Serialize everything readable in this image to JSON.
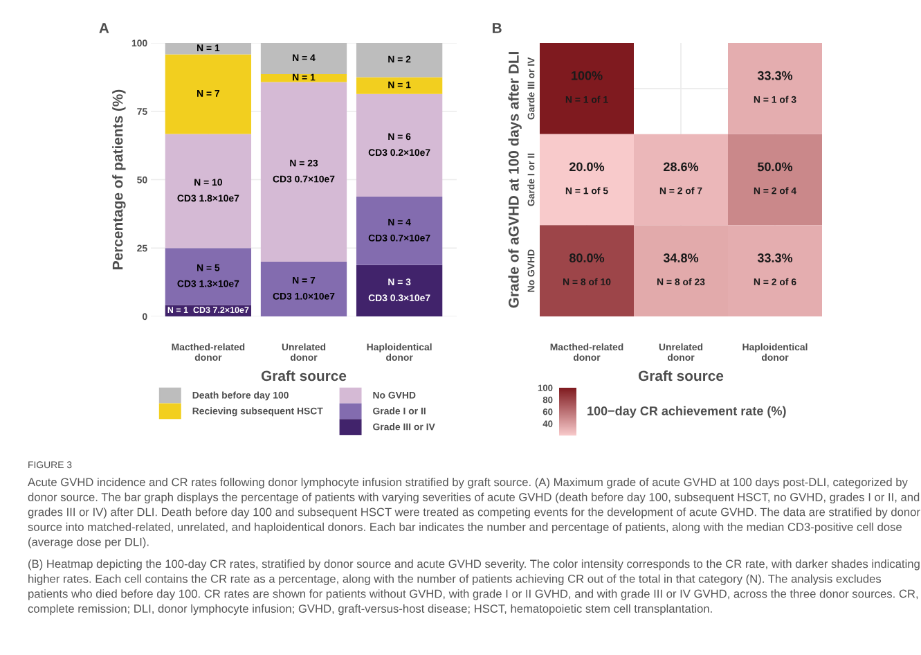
{
  "chart_data": [
    {
      "type": "bar",
      "title": "A",
      "stacked": true,
      "xlabel": "Graft source",
      "ylabel": "Percentage of patients (%)",
      "categories": [
        "Macthed-related\ndonor",
        "Unrelated\ndonor",
        "Haploidentical\ndonor"
      ],
      "ylim": [
        0,
        100
      ],
      "yticks": [
        0,
        25,
        50,
        75,
        100
      ],
      "grid": true,
      "legend": "bottom",
      "series": [
        {
          "name": "Grade III or IV",
          "color": "#41236b",
          "values": [
            4.2,
            0,
            18.8
          ],
          "value_labels": [
            "N = 1  CD3 7.2×10e7",
            null,
            "N = 3\nCD3 0.3×10e7"
          ]
        },
        {
          "name": "Grade I or II",
          "color": "#836caf",
          "values": [
            20.8,
            20.0,
            25.0
          ],
          "value_labels": [
            "N = 5\nCD3 1.3×10e7",
            "N = 7\nCD3 1.0×10e7",
            "N = 4\nCD3 0.7×10e7"
          ]
        },
        {
          "name": "No GVHD",
          "color": "#d5bad5",
          "values": [
            41.7,
            65.7,
            37.5
          ],
          "value_labels": [
            "N = 10\nCD3 1.8×10e7",
            "N = 23\nCD3 0.7×10e7",
            "N = 6\nCD3 0.2×10e7"
          ]
        },
        {
          "name": "Recieving subsequent HSCT",
          "color": "#f2cf1f",
          "values": [
            29.1,
            2.9,
            6.2
          ]
        },
        {
          "name": "Death before day 100",
          "color": "#bdbdbd",
          "values": [
            4.2,
            11.4,
            12.5
          ]
        }
      ],
      "annotations": [
        "N = 7",
        "N = 1",
        "N = 1",
        "N = 1",
        "N = 4",
        "N = 2",
        "FIGURE 3",
        "Acute GVHD incidence and CR rates following donor lymphocyte infusion stratified by graft source. (A) Maximum grade of acute GVHD at 100 days post-DLI, categorized by donor source. The bar graph displays the percentage of patients with varying severities of acute GVHD (death before day 100, subsequent HSCT, no GVHD, grades I or II, and grades III or IV) after DLI. Death before day 100 and subsequent HSCT were treated as competing events for the development of acute GVHD. The data are stratified by donor source into matched-related, unrelated, and haploidentical donors. Each bar indicates the number and percentage of patients, along with the median CD3-positive cell dose (average dose per DLI).",
        "(B) Heatmap depicting the 100-day CR rates, stratified by donor source and acute GVHD severity. The color intensity corresponds to the CR rate, with darker shades indicating higher rates. Each cell contains the CR rate as a percentage, along with the number of patients achieving CR out of the total in that category (N). The analysis excludes patients who died before day 100. CR rates are shown for patients without GVHD, with grade I or II GVHD, and with grade III or IV GVHD, across the three donor sources. CR, complete remission; DLI, donor lymphocyte infusion; GVHD, graft-versus-host disease; HSCT, hematopoietic stem cell transplantation."
      ]
    },
    {
      "type": "heatmap",
      "title": "B",
      "xlabel": "Graft source",
      "ylabel": "Grade of aGVHD at 100 days after DLI",
      "clabel": "100−day CR achievement rate (%)",
      "categories": [
        "Macthed-related\ndonor",
        "Unrelated\ndonor",
        "Haploidentical\ndonor"
      ],
      "y_categories": [
        "Garde III or IV",
        "Garde I or II",
        "No GVHD"
      ],
      "cells": [
        [
          100,
          null,
          33.3
        ],
        [
          20.0,
          28.6,
          50.0
        ],
        [
          80.0,
          34.8,
          33.3
        ]
      ],
      "cell_labels": [
        [
          "100%\nN = 1 of 1",
          null,
          "33.3%\nN = 1 of 3"
        ],
        [
          "20.0%\nN = 1 of 5",
          "28.6%\nN = 2 of 7",
          "50.0%\nN = 2 of 4"
        ],
        [
          "80.0%\nN = 8 of 10",
          "34.8%\nN = 8 of 23",
          "33.3%\nN = 2 of 6"
        ]
      ],
      "clim": [
        20,
        100
      ],
      "cticks": [
        40,
        60,
        80,
        100
      ],
      "colors": [
        "#f8cacb",
        "#7f1a1f"
      ],
      "grid": true
    }
  ]
}
